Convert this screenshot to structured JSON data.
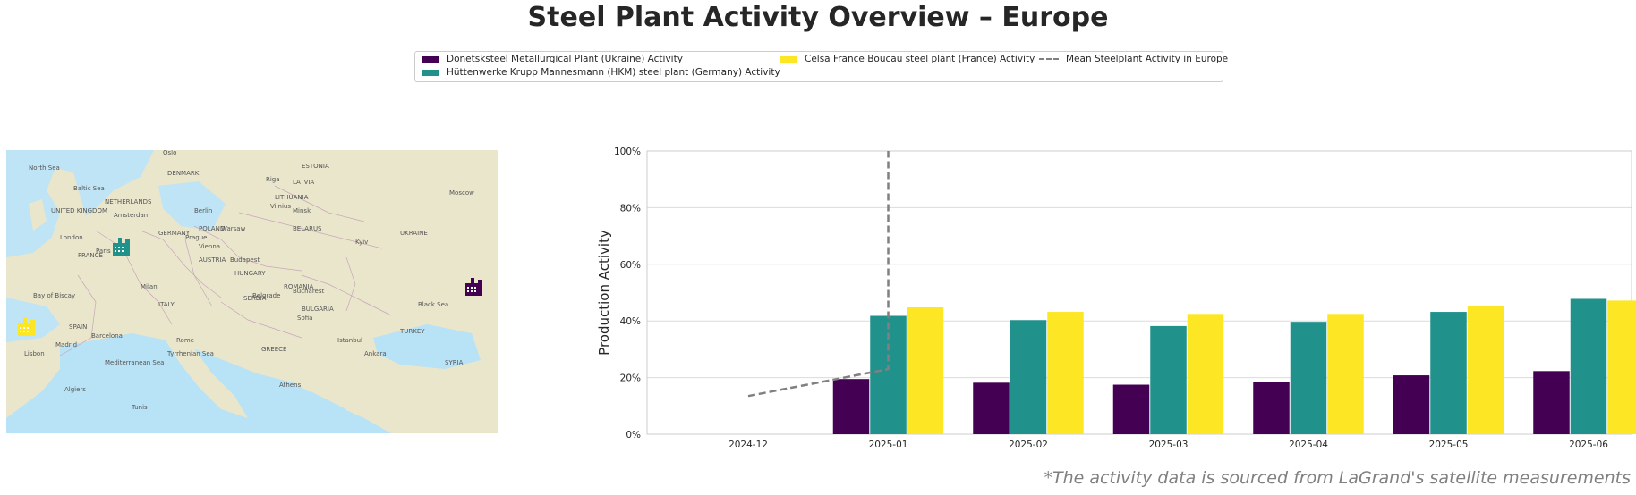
{
  "title": "Steel Plant Activity Overview – Europe",
  "footnote": "*The activity data is sourced from LaGrand's satellite measurements",
  "legend": {
    "donetsk": "Donetsksteel Metallurgical Plant (Ukraine) Activity",
    "hkm": "Hüttenwerke Krupp Mannesmann (HKM) steel plant (Germany) Activity",
    "celsa": "Celsa France Boucau steel plant (France) Activity",
    "mean": "Mean Steelplant Activity in Europe"
  },
  "colors": {
    "donetsk": "#440154",
    "hkm": "#21918c",
    "celsa": "#fde725",
    "mean": "#808080"
  },
  "map": {
    "labels": [
      "North Sea",
      "Baltic Sea",
      "DENMARK",
      "UNITED KINGDOM",
      "NETHERLANDS",
      "POLAND",
      "BELARUS",
      "LITHUANIA",
      "LATVIA",
      "ESTONIA",
      "UKRAINE",
      "FRANCE",
      "GERMANY",
      "AUSTRIA",
      "HUNGARY",
      "ROMANIA",
      "BULGARIA",
      "ITALY",
      "SPAIN",
      "SERBIA",
      "GREECE",
      "TURKEY",
      "Black Sea",
      "Mediterranean Sea",
      "Tyrrhenian Sea",
      "SYRIA",
      "Bay of Biscay",
      "Berlin",
      "Warsaw",
      "Kyiv",
      "Paris",
      "Vienna",
      "Rome",
      "Madrid",
      "Minsk",
      "Moscow",
      "Budapest",
      "Bucharest",
      "Istanbul",
      "Athens",
      "London",
      "Amsterdam",
      "Prague",
      "Milan",
      "Barcelona",
      "Riga",
      "Vilnius",
      "Oslo",
      "Sofia",
      "Belgrade",
      "Lisbon",
      "Tunis",
      "Algiers",
      "Ankara"
    ],
    "icons": [
      "factory-icon-hkm",
      "factory-icon-donetsk",
      "factory-icon-celsa"
    ]
  },
  "chart_data": {
    "type": "bar",
    "title": "",
    "xlabel": "",
    "ylabel": "Production Activity",
    "ylim": [
      0,
      100
    ],
    "yticks": [
      "0%",
      "20%",
      "40%",
      "60%",
      "80%",
      "100%"
    ],
    "categories": [
      "2024-12",
      "2025-01",
      "2025-02",
      "2025-03",
      "2025-04",
      "2025-05",
      "2025-06"
    ],
    "series": [
      {
        "name": "Donetsksteel Metallurgical Plant (Ukraine) Activity",
        "color": "#440154",
        "values": [
          null,
          19.5,
          18.2,
          17.5,
          18.5,
          20.8,
          22.3
        ]
      },
      {
        "name": "Hüttenwerke Krupp Mannesmann (HKM) steel plant (Germany) Activity",
        "color": "#21918c",
        "values": [
          null,
          41.8,
          40.3,
          38.2,
          39.7,
          43.2,
          47.8
        ]
      },
      {
        "name": "Celsa France Boucau steel plant (France) Activity",
        "color": "#fde725",
        "values": [
          null,
          44.8,
          43.2,
          42.5,
          42.5,
          45.2,
          47.2
        ]
      }
    ],
    "mean_line": {
      "name": "Mean Steelplant Activity in Europe",
      "x": [
        "2024-12",
        "2025-01",
        "2025-01"
      ],
      "y": [
        13.5,
        23.0,
        100
      ]
    },
    "grid": true
  }
}
